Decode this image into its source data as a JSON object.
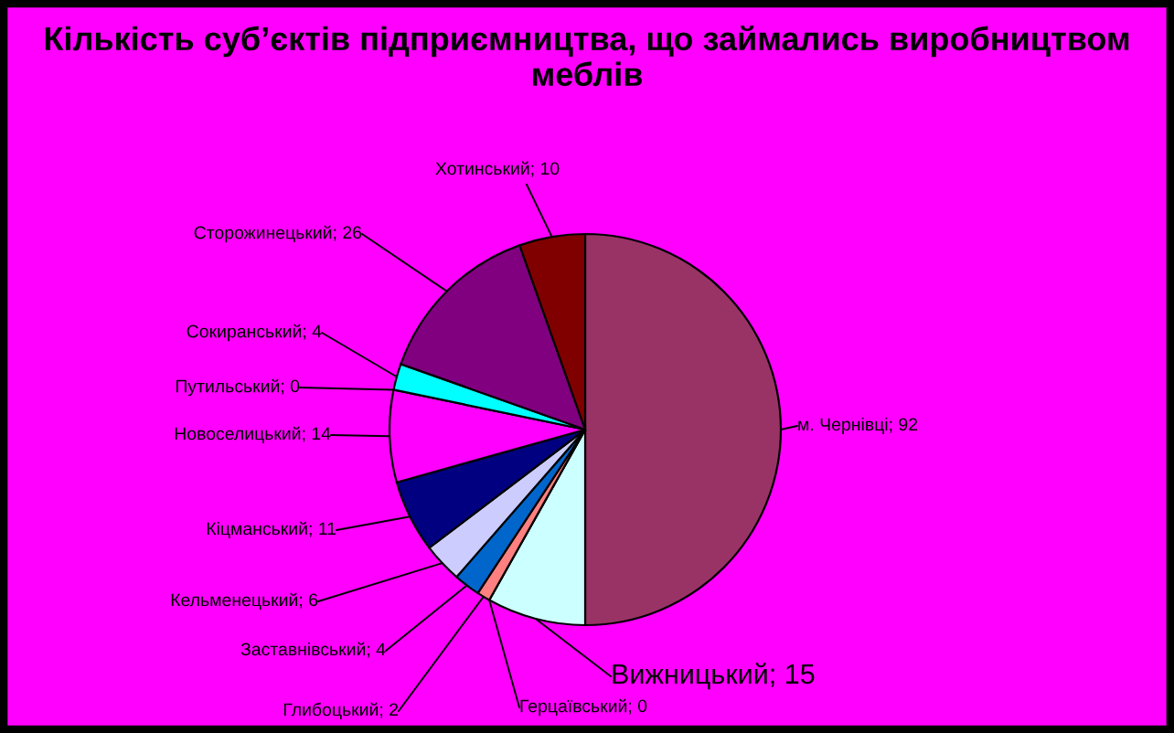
{
  "chart_data": {
    "type": "pie",
    "title": "Кількість суб’єктів підприємництва, що займались виробництвом меблів",
    "categories": [
      "м. Чернівці",
      "Вижницький",
      "Герцаївський",
      "Глибоцький",
      "Заставнівський",
      "Кельменецький",
      "Кіцманський",
      "Новоселицький",
      "Путильський",
      "Сокиранський",
      "Сторожинецький",
      "Хотинський"
    ],
    "values": [
      92,
      15,
      0,
      2,
      4,
      6,
      11,
      14,
      0,
      4,
      26,
      10
    ],
    "colors": [
      "#993366",
      "#ccffff",
      "#ffff99",
      "#ff8080",
      "#0066cc",
      "#ccccff",
      "#000080",
      "#ff00ff",
      "#66ffff",
      "#00ffff",
      "#800080",
      "#800000"
    ],
    "value_labels": [
      "; 92",
      "; 15",
      "; 0",
      "; 2",
      "; 4",
      "; 6",
      "; 11",
      "; 14",
      "; 0",
      "; 4",
      "; 26",
      "; 10"
    ],
    "legend": false
  }
}
